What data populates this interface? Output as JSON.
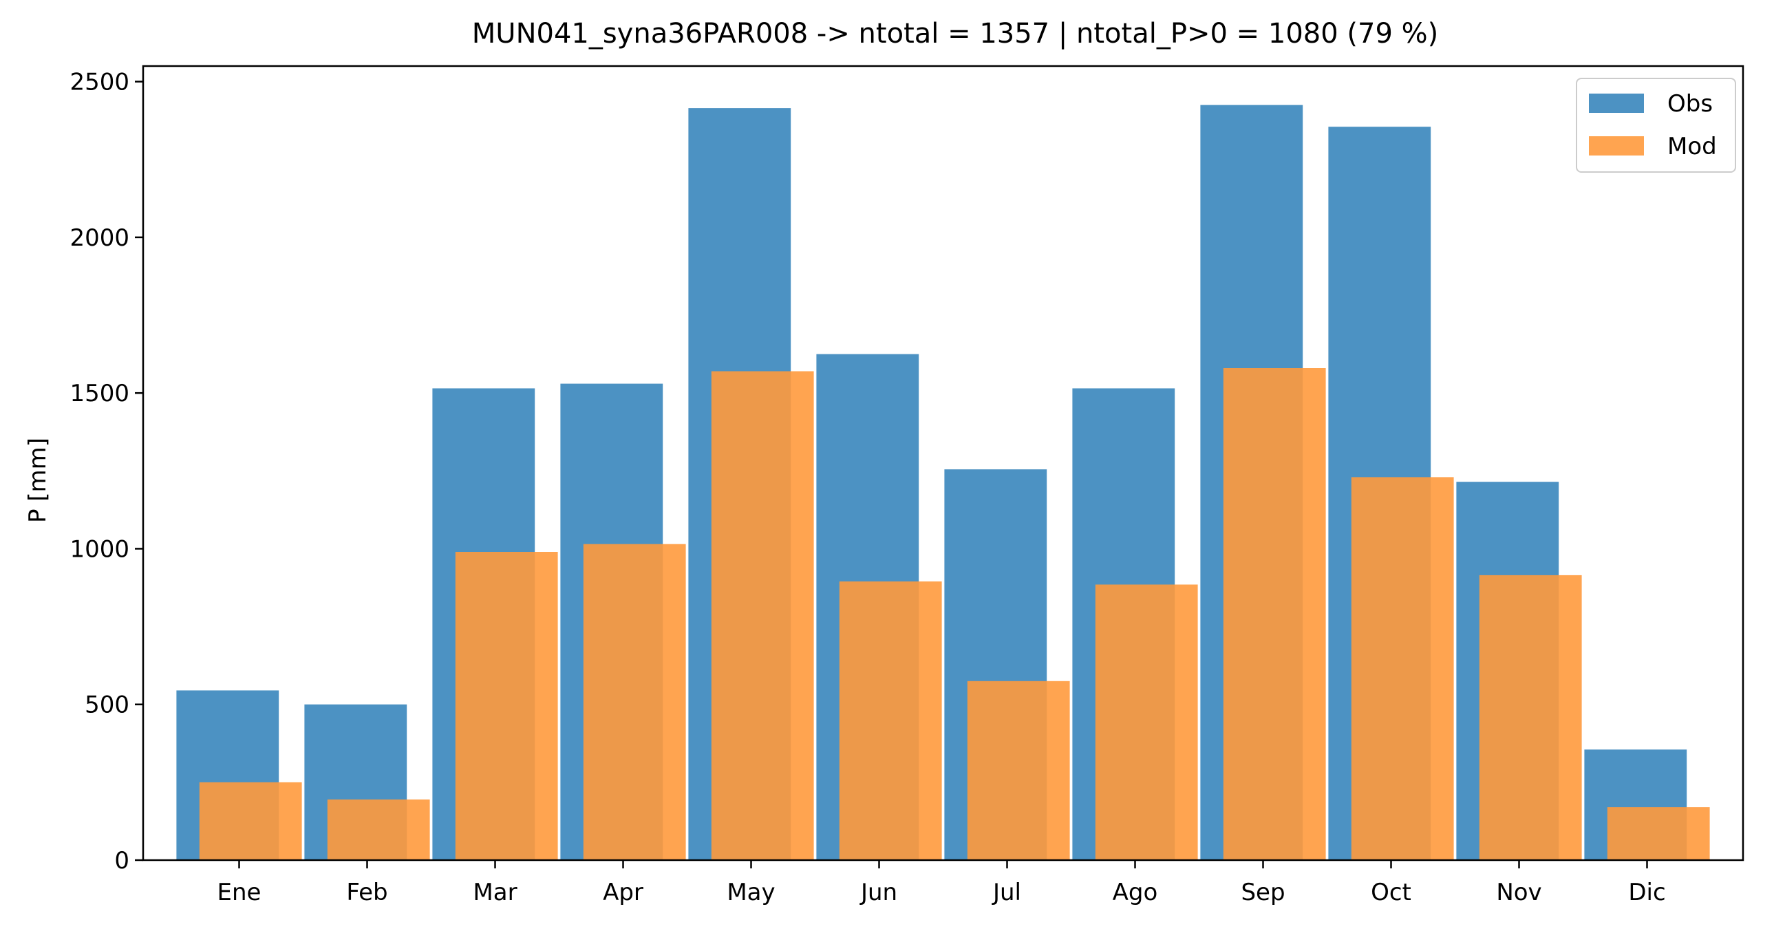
{
  "chart_data": {
    "type": "bar",
    "title": "MUN041_syna36PAR008 -> ntotal = 1357 | ntotal_P>0 = 1080 (79 %)",
    "xlabel": "",
    "ylabel": "P [mm]",
    "categories": [
      "Ene",
      "Feb",
      "Mar",
      "Apr",
      "May",
      "Jun",
      "Jul",
      "Ago",
      "Sep",
      "Oct",
      "Nov",
      "Dic"
    ],
    "series": [
      {
        "name": "Obs",
        "color": "#4c92c3",
        "values": [
          545,
          500,
          1515,
          1530,
          2415,
          1625,
          1255,
          1515,
          2425,
          2355,
          1215,
          355
        ]
      },
      {
        "name": "Mod",
        "color": "#ff9a3d",
        "opacity": 0.9,
        "values": [
          250,
          195,
          990,
          1015,
          1570,
          895,
          575,
          885,
          1580,
          1230,
          915,
          170
        ]
      }
    ],
    "ylim": [
      0,
      2550
    ],
    "yticks": [
      0,
      500,
      1000,
      1500,
      2000,
      2500
    ],
    "legend": "top-right",
    "grid": false
  }
}
